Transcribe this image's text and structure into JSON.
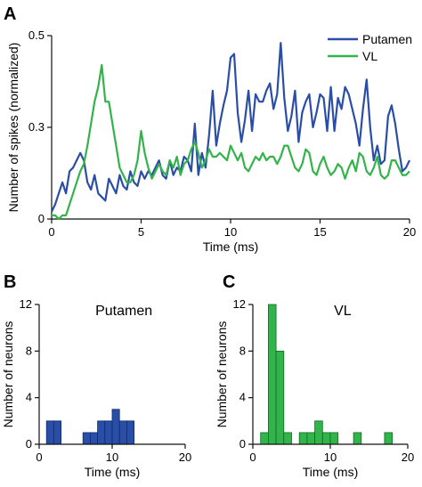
{
  "panel_letters": [
    "A",
    "B",
    "C"
  ],
  "colors": {
    "putamen": "#2a4ea6",
    "vl": "#32b44a",
    "axis": "#111111",
    "bar_edge": "#0d2a6e",
    "bar_edge_vl": "#0e6b25"
  },
  "chart_data": [
    {
      "panel": "A",
      "type": "line",
      "title": "",
      "xlabel": "Time (ms)",
      "ylabel": "Number of spikes (normalized)",
      "xlim": [
        0,
        20
      ],
      "ylim": [
        0,
        0.5
      ],
      "xticks": [
        "0",
        "5",
        "10",
        "15",
        "20"
      ],
      "yticks": [
        "0",
        "0.3",
        "0.5"
      ],
      "ytick_values": [
        0,
        0.25,
        0.5
      ],
      "grid": false,
      "legend": "top-right",
      "x_start": 0,
      "x_step": 0.2,
      "series": [
        {
          "name": "Putamen",
          "color": "#2a4ea6",
          "values": [
            0.02,
            0.04,
            0.07,
            0.1,
            0.07,
            0.13,
            0.14,
            0.16,
            0.18,
            0.16,
            0.1,
            0.08,
            0.12,
            0.07,
            0.06,
            0.05,
            0.11,
            0.09,
            0.07,
            0.12,
            0.09,
            0.08,
            0.13,
            0.1,
            0.09,
            0.13,
            0.11,
            0.13,
            0.12,
            0.14,
            0.16,
            0.12,
            0.11,
            0.16,
            0.12,
            0.14,
            0.13,
            0.17,
            0.16,
            0.13,
            0.26,
            0.12,
            0.18,
            0.14,
            0.23,
            0.35,
            0.2,
            0.26,
            0.31,
            0.35,
            0.44,
            0.45,
            0.29,
            0.21,
            0.27,
            0.35,
            0.24,
            0.34,
            0.32,
            0.32,
            0.35,
            0.37,
            0.3,
            0.34,
            0.48,
            0.33,
            0.24,
            0.28,
            0.35,
            0.21,
            0.29,
            0.32,
            0.34,
            0.25,
            0.29,
            0.34,
            0.33,
            0.24,
            0.36,
            0.24,
            0.33,
            0.3,
            0.36,
            0.34,
            0.3,
            0.26,
            0.2,
            0.3,
            0.38,
            0.25,
            0.16,
            0.2,
            0.15,
            0.16,
            0.28,
            0.31,
            0.26,
            0.19,
            0.13,
            0.14,
            0.16
          ]
        },
        {
          "name": "VL",
          "color": "#32b44a",
          "values": [
            0.01,
            0.01,
            0.0,
            0.01,
            0.01,
            0.04,
            0.07,
            0.1,
            0.13,
            0.15,
            0.2,
            0.26,
            0.32,
            0.36,
            0.42,
            0.32,
            0.32,
            0.26,
            0.2,
            0.14,
            0.12,
            0.1,
            0.1,
            0.12,
            0.16,
            0.24,
            0.18,
            0.14,
            0.11,
            0.13,
            0.15,
            0.13,
            0.12,
            0.16,
            0.14,
            0.17,
            0.12,
            0.15,
            0.16,
            0.19,
            0.21,
            0.18,
            0.14,
            0.16,
            0.19,
            0.17,
            0.17,
            0.18,
            0.17,
            0.16,
            0.2,
            0.18,
            0.16,
            0.18,
            0.14,
            0.13,
            0.15,
            0.17,
            0.16,
            0.18,
            0.16,
            0.17,
            0.17,
            0.15,
            0.17,
            0.2,
            0.2,
            0.17,
            0.14,
            0.13,
            0.15,
            0.19,
            0.18,
            0.13,
            0.12,
            0.15,
            0.17,
            0.14,
            0.12,
            0.13,
            0.15,
            0.14,
            0.11,
            0.14,
            0.16,
            0.13,
            0.18,
            0.17,
            0.13,
            0.12,
            0.14,
            0.17,
            0.12,
            0.11,
            0.12,
            0.16,
            0.16,
            0.14,
            0.12,
            0.12,
            0.13
          ]
        }
      ]
    },
    {
      "panel": "B",
      "type": "bar",
      "title": "Putamen",
      "xlabel": "Time (ms)",
      "ylabel": "Number of neurons",
      "xlim": [
        0,
        20
      ],
      "ylim": [
        0,
        12
      ],
      "xticks": [
        "0",
        "10",
        "20"
      ],
      "yticks": [
        "0",
        "4",
        "8",
        "12"
      ],
      "bin_width": 1,
      "bin_starts": [
        1,
        2,
        6,
        7,
        8,
        9,
        10,
        11,
        12
      ],
      "values": [
        2,
        2,
        1,
        1,
        2,
        2,
        3,
        2,
        2
      ],
      "color": "#2a4ea6"
    },
    {
      "panel": "C",
      "type": "bar",
      "title": "VL",
      "xlabel": "Time (ms)",
      "ylabel": "Number of neurons",
      "xlim": [
        0,
        20
      ],
      "ylim": [
        0,
        12
      ],
      "xticks": [
        "0",
        "10",
        "20"
      ],
      "yticks": [
        "0",
        "4",
        "8",
        "12"
      ],
      "bin_width": 1,
      "bin_starts": [
        1,
        2,
        3,
        4,
        6,
        7,
        8,
        9,
        10,
        13,
        17
      ],
      "values": [
        1,
        12,
        8,
        1,
        1,
        1,
        2,
        1,
        1,
        1,
        1
      ],
      "color": "#32b44a"
    }
  ]
}
